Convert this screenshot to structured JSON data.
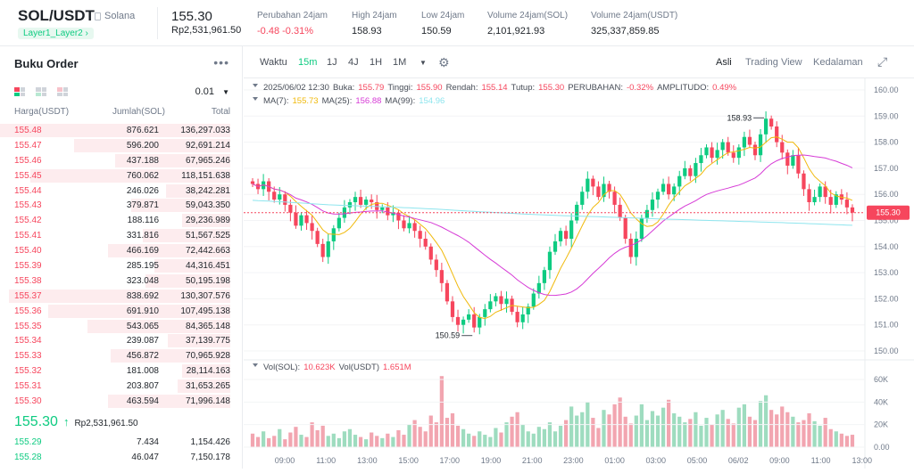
{
  "header": {
    "pair": "SOL/USDT",
    "pair_name": "Solana",
    "tag": "Layer1_Layer2",
    "price": "155.30",
    "price_idr": "Rp2,531,961.50",
    "stats": [
      {
        "label": "Perubahan 24jam",
        "value": "-0.48 -0.31%",
        "color": "red"
      },
      {
        "label": "High 24jam",
        "value": "158.93",
        "color": ""
      },
      {
        "label": "Low 24jam",
        "value": "150.59",
        "color": ""
      },
      {
        "label": "Volume 24jam(SOL)",
        "value": "2,101,921.93",
        "color": ""
      },
      {
        "label": "Volume 24jam(USDT)",
        "value": "325,337,859.85",
        "color": ""
      }
    ]
  },
  "orderbook": {
    "title": "Buku Order",
    "precision": "0.01",
    "col_price": "Harga(USDT)",
    "col_qty": "Jumlah(SOL)",
    "col_total": "Total",
    "asks": [
      {
        "p": "155.48",
        "q": "876.621",
        "t": "136,297.033",
        "depth": 1.0
      },
      {
        "p": "155.47",
        "q": "596.200",
        "t": "92,691.214",
        "depth": 0.68
      },
      {
        "p": "155.46",
        "q": "437.188",
        "t": "67,965.246",
        "depth": 0.5
      },
      {
        "p": "155.45",
        "q": "760.062",
        "t": "118,151.638",
        "depth": 0.87
      },
      {
        "p": "155.44",
        "q": "246.026",
        "t": "38,242.281",
        "depth": 0.28
      },
      {
        "p": "155.43",
        "q": "379.871",
        "t": "59,043.350",
        "depth": 0.43
      },
      {
        "p": "155.42",
        "q": "188.116",
        "t": "29,236.989",
        "depth": 0.21
      },
      {
        "p": "155.41",
        "q": "331.816",
        "t": "51,567.525",
        "depth": 0.38
      },
      {
        "p": "155.40",
        "q": "466.169",
        "t": "72,442.663",
        "depth": 0.53
      },
      {
        "p": "155.39",
        "q": "285.195",
        "t": "44,316.451",
        "depth": 0.33
      },
      {
        "p": "155.38",
        "q": "323.048",
        "t": "50,195.198",
        "depth": 0.37
      },
      {
        "p": "155.37",
        "q": "838.692",
        "t": "130,307.576",
        "depth": 0.96
      },
      {
        "p": "155.36",
        "q": "691.910",
        "t": "107,495.138",
        "depth": 0.79
      },
      {
        "p": "155.35",
        "q": "543.065",
        "t": "84,365.148",
        "depth": 0.62
      },
      {
        "p": "155.34",
        "q": "239.087",
        "t": "37,139.775",
        "depth": 0.27
      },
      {
        "p": "155.33",
        "q": "456.872",
        "t": "70,965.928",
        "depth": 0.52
      },
      {
        "p": "155.32",
        "q": "181.008",
        "t": "28,114.163",
        "depth": 0.21
      },
      {
        "p": "155.31",
        "q": "203.807",
        "t": "31,653.265",
        "depth": 0.23
      },
      {
        "p": "155.30",
        "q": "463.594",
        "t": "71,996.148",
        "depth": 0.53
      }
    ],
    "last_price": "155.30",
    "last_arrow": "↑",
    "last_idr": "Rp2,531,961.50",
    "bids": [
      {
        "p": "155.29",
        "q": "7.434",
        "t": "1,154.426"
      },
      {
        "p": "155.28",
        "q": "46.047",
        "t": "7,150.178"
      }
    ]
  },
  "toolbar": {
    "time_label": "Waktu",
    "intervals": [
      "15m",
      "1J",
      "4J",
      "1H",
      "1M"
    ],
    "active_interval": "15m",
    "views": [
      "Asli",
      "Trading View",
      "Kedalaman"
    ],
    "active_view": "Asli"
  },
  "chart_info": {
    "date": "2025/06/02 12:30",
    "open_label": "Buka:",
    "open": "155.79",
    "high_label": "Tinggi:",
    "high": "155.90",
    "low_label": "Rendah:",
    "low": "155.14",
    "close_label": "Tutup:",
    "close": "155.30",
    "change_label": "PERUBAHAN:",
    "change": "-0.32%",
    "amp_label": "AMPLITUDO:",
    "amp": "0.49%",
    "ma7_label": "MA(7):",
    "ma7": "155.73",
    "ma25_label": "MA(25):",
    "ma25": "156.88",
    "ma99_label": "MA(99):",
    "ma99": "154.96",
    "vol_sol_label": "Vol(SOL):",
    "vol_sol": "10.623K",
    "vol_usdt_label": "Vol(USDT)",
    "vol_usdt": "1.651M"
  },
  "colors": {
    "up": "#0ecb81",
    "down": "#f6465d",
    "ma7": "#f0b90b",
    "ma25": "#d63bd6",
    "ma99": "#8ee5ee"
  },
  "chart_data": {
    "type": "candlestick",
    "price_axis": {
      "min": 150.0,
      "max": 160.0,
      "ticks": [
        "160.00",
        "159.00",
        "158.00",
        "157.00",
        "156.00",
        "155.00",
        "154.00",
        "153.00",
        "152.00",
        "151.00",
        "150.00"
      ]
    },
    "volume_axis": {
      "min": 0,
      "max": 60000,
      "ticks": [
        "60K",
        "40K",
        "20K",
        "0.00"
      ]
    },
    "time_ticks": [
      "09:00",
      "11:00",
      "13:00",
      "15:00",
      "17:00",
      "19:00",
      "21:00",
      "23:00",
      "01:00",
      "03:00",
      "05:00",
      "06/02",
      "09:00",
      "11:00",
      "13:00"
    ],
    "high_label": "158.93",
    "low_label": "150.59",
    "current_price_label": "155.30",
    "closes": [
      156.4,
      156.2,
      156.5,
      156.1,
      155.8,
      156.0,
      155.6,
      155.3,
      154.8,
      155.2,
      154.9,
      154.6,
      154.1,
      153.6,
      154.2,
      154.7,
      155.1,
      155.5,
      155.7,
      155.9,
      155.6,
      155.8,
      155.7,
      155.4,
      155.5,
      155.2,
      155.3,
      155.0,
      154.7,
      154.9,
      154.6,
      154.3,
      154.0,
      153.5,
      153.1,
      152.6,
      151.9,
      151.3,
      151.0,
      151.2,
      151.4,
      150.9,
      151.3,
      151.6,
      151.9,
      152.1,
      151.8,
      152.0,
      151.5,
      151.1,
      151.4,
      151.7,
      152.2,
      152.6,
      153.1,
      153.8,
      154.2,
      154.6,
      154.3,
      155.0,
      155.6,
      156.1,
      156.6,
      156.3,
      155.9,
      156.4,
      156.1,
      155.6,
      155.1,
      154.3,
      153.6,
      154.3,
      155.1,
      155.4,
      155.8,
      156.1,
      156.4,
      156.0,
      156.3,
      156.7,
      157.0,
      156.7,
      157.2,
      157.5,
      157.8,
      157.4,
      157.7,
      158.0,
      157.6,
      157.4,
      157.8,
      158.2,
      157.9,
      157.5,
      158.3,
      158.9,
      158.6,
      158.0,
      157.6,
      157.1,
      157.5,
      156.8,
      156.2,
      155.7,
      155.9,
      156.3,
      155.9,
      155.6,
      156.0,
      155.8,
      155.5,
      155.3
    ],
    "volumes": [
      12,
      9,
      14,
      8,
      10,
      16,
      7,
      13,
      18,
      11,
      9,
      22,
      15,
      19,
      10,
      12,
      8,
      14,
      16,
      11,
      9,
      7,
      13,
      10,
      8,
      12,
      9,
      15,
      11,
      20,
      24,
      18,
      14,
      28,
      22,
      63,
      26,
      30,
      19,
      16,
      12,
      10,
      14,
      11,
      9,
      17,
      13,
      22,
      27,
      31,
      20,
      14,
      12,
      18,
      16,
      22,
      14,
      19,
      24,
      36,
      28,
      31,
      40,
      26,
      17,
      33,
      29,
      38,
      44,
      27,
      21,
      28,
      38,
      24,
      32,
      28,
      35,
      42,
      30,
      27,
      22,
      25,
      31,
      19,
      26,
      20,
      29,
      33,
      25,
      21,
      35,
      38,
      27,
      24,
      41,
      46,
      33,
      29,
      36,
      31,
      27,
      22,
      24,
      30,
      23,
      19,
      26,
      16,
      14,
      12,
      10,
      11
    ]
  }
}
